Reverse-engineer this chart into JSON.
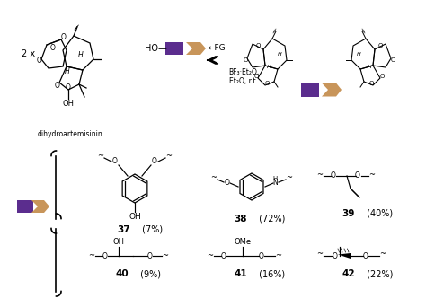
{
  "purple_color": "#5B2D8E",
  "tan_color": "#C8955A",
  "bg_color": "#FFFFFF",
  "text_color": "#000000",
  "reaction_label1": "BF₃·Et₂O,",
  "reaction_label2": "Et₂O, r.t.",
  "reactant_label": "dihydroartemisinin",
  "multiplier": "2 x",
  "fig_width": 4.74,
  "fig_height": 3.42,
  "dpi": 100
}
